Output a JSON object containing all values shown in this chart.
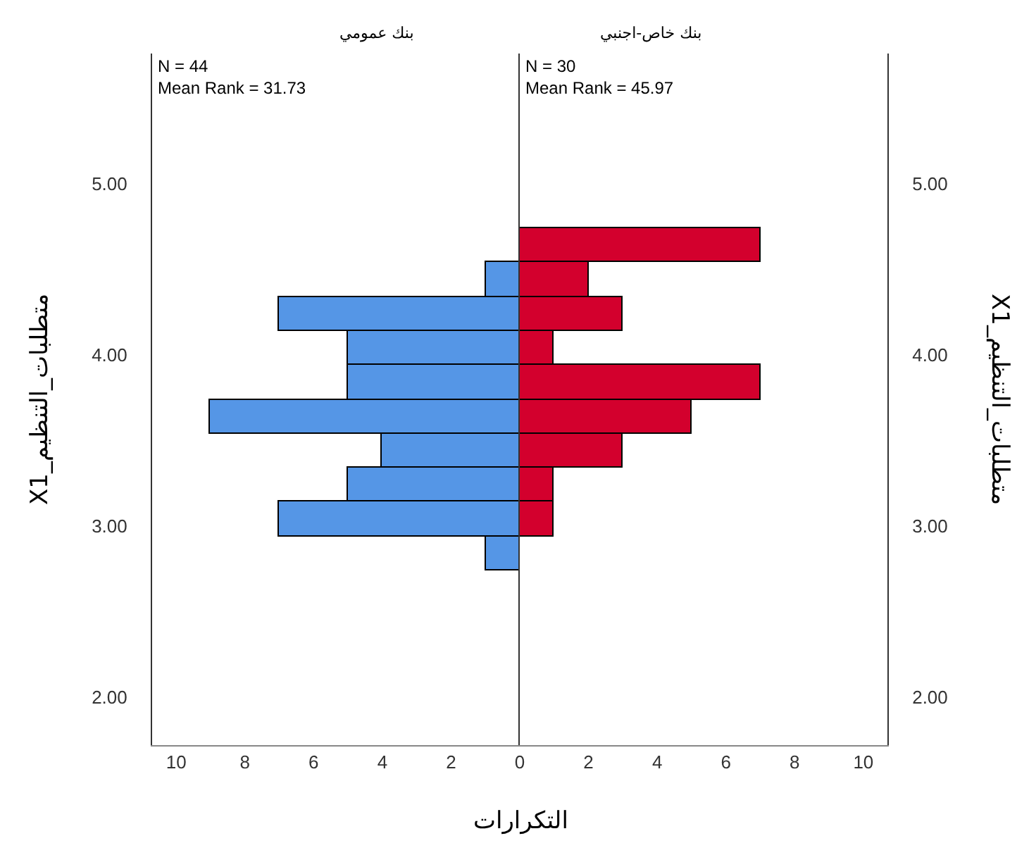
{
  "chart_data": [
    {
      "type": "histogram",
      "orientation": "horizontal",
      "title": "بنك عمومي",
      "ylabel": "X1_متطلبات_التنظيم",
      "xlabel": "التكرارات",
      "bins": [
        2.74,
        2.94,
        3.14,
        3.34,
        3.54,
        3.74,
        3.94,
        4.14,
        4.34,
        4.54,
        4.74
      ],
      "values": [
        1,
        7,
        5,
        4,
        9,
        5,
        5,
        7,
        1,
        0
      ],
      "color": "#5596e6",
      "annotations": [
        "N = 44\nMean Rank = 31.73"
      ],
      "xlim": [
        10.7,
        0
      ],
      "xticks": [
        10,
        8,
        6,
        4,
        2,
        0
      ],
      "ylim": [
        1.72,
        5.76
      ],
      "yticks": [
        {
          "value": 2,
          "label": "2.00"
        },
        {
          "value": 3,
          "label": "3.00"
        },
        {
          "value": 4,
          "label": "4.00"
        },
        {
          "value": 5,
          "label": "5.00"
        }
      ]
    },
    {
      "type": "histogram",
      "orientation": "horizontal",
      "title": "بنك خاص-اجنبي",
      "ylabel": "X1_متطلبات_التنظيم",
      "bins": [
        2.74,
        2.94,
        3.14,
        3.34,
        3.54,
        3.74,
        3.94,
        4.14,
        4.34,
        4.54,
        4.74
      ],
      "values": [
        0,
        1,
        1,
        3,
        5,
        7,
        1,
        3,
        2,
        7
      ],
      "color": "#d3002d",
      "annotations": [
        "N = 30\nMean Rank = 45.97"
      ],
      "xlim": [
        0,
        10.7
      ],
      "xticks": [
        2,
        4,
        6,
        8,
        10
      ],
      "ylim": [
        1.72,
        5.76
      ],
      "yticks": [
        {
          "value": 2,
          "label": "2.00"
        },
        {
          "value": 3,
          "label": "3.00"
        },
        {
          "value": 4,
          "label": "4.00"
        },
        {
          "value": 5,
          "label": "5.00"
        }
      ]
    }
  ]
}
